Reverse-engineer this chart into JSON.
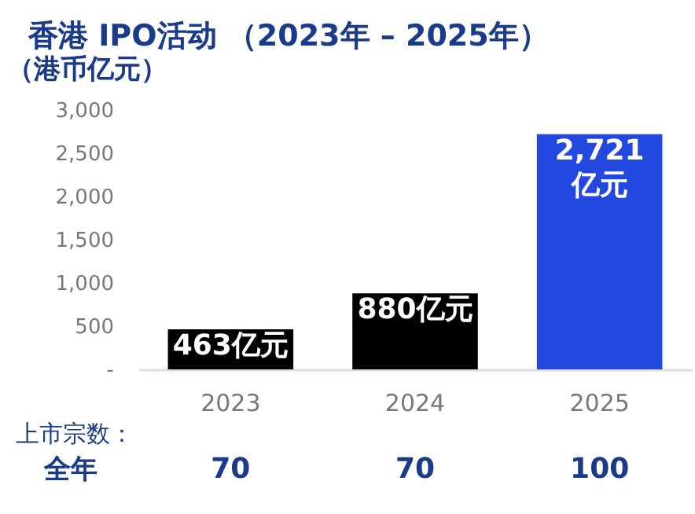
{
  "chart_data": {
    "type": "bar",
    "title": "香港 IPO活动 （2023年 – 2025年）",
    "ylabel": "（港币亿元）",
    "categories": [
      "2023",
      "2024",
      "2025"
    ],
    "values": [
      463,
      880,
      2721
    ],
    "colors": [
      "#000000",
      "#000000",
      "#2348e0"
    ],
    "value_labels": [
      "463亿元",
      "880亿元",
      "2,721亿元"
    ],
    "ylim": [
      0,
      3000
    ],
    "yticks": [
      {
        "value": 0,
        "label": "-"
      },
      500,
      {
        "value": 1000,
        "label": "1,000"
      },
      {
        "value": 1500,
        "label": "1,500"
      },
      {
        "value": 2000,
        "label": "2,000"
      },
      {
        "value": 2500,
        "label": "2,500"
      },
      {
        "value": 3000,
        "label": "3,000"
      }
    ],
    "grid": false,
    "annotations": [
      "上市宗数：",
      "全年",
      "70",
      "70",
      "100"
    ]
  }
}
